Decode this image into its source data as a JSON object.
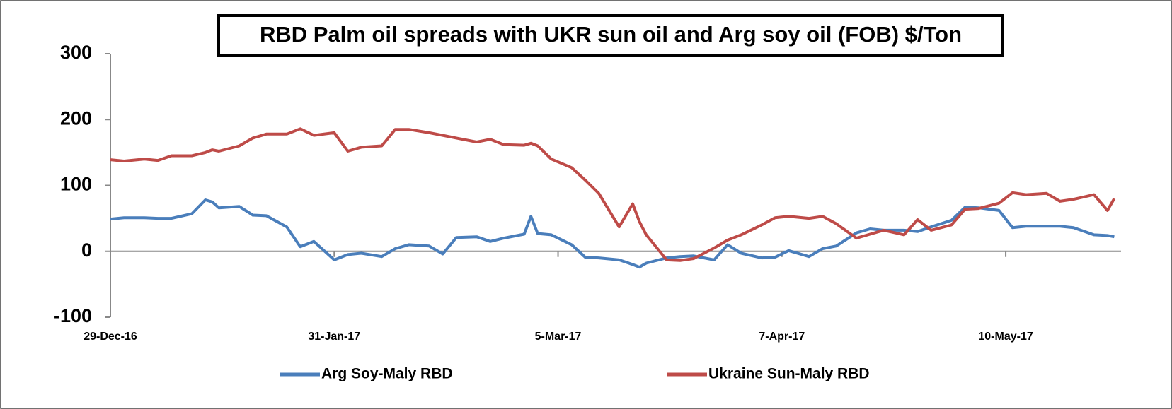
{
  "chart_data": {
    "type": "line",
    "title": "RBD Palm oil spreads with UKR sun oil and Arg soy oil (FOB) $/Ton",
    "x": [
      "2016-12-29",
      "2016-12-31",
      "2017-01-03",
      "2017-01-05",
      "2017-01-07",
      "2017-01-10",
      "2017-01-12",
      "2017-01-13",
      "2017-01-14",
      "2017-01-17",
      "2017-01-19",
      "2017-01-21",
      "2017-01-24",
      "2017-01-26",
      "2017-01-28",
      "2017-01-31",
      "2017-02-02",
      "2017-02-04",
      "2017-02-07",
      "2017-02-09",
      "2017-02-11",
      "2017-02-14",
      "2017-02-16",
      "2017-02-18",
      "2017-02-21",
      "2017-02-23",
      "2017-02-25",
      "2017-02-28",
      "2017-03-01",
      "2017-03-02",
      "2017-03-04",
      "2017-03-07",
      "2017-03-09",
      "2017-03-11",
      "2017-03-14",
      "2017-03-16",
      "2017-03-17",
      "2017-03-18",
      "2017-03-21",
      "2017-03-23",
      "2017-03-25",
      "2017-03-28",
      "2017-03-30",
      "2017-04-01",
      "2017-04-04",
      "2017-04-06",
      "2017-04-08",
      "2017-04-11",
      "2017-04-13",
      "2017-04-15",
      "2017-04-18",
      "2017-04-20",
      "2017-04-22",
      "2017-04-25",
      "2017-04-27",
      "2017-04-29",
      "2017-05-02",
      "2017-05-04",
      "2017-05-06",
      "2017-05-09",
      "2017-05-11",
      "2017-05-13",
      "2017-05-16",
      "2017-05-18",
      "2017-05-20",
      "2017-05-23",
      "2017-05-25",
      "2017-05-26"
    ],
    "series": [
      {
        "name": "Arg Soy-Maly RBD",
        "color": "#4a7ebb",
        "values": [
          49,
          51,
          51,
          50,
          50,
          57,
          78,
          75,
          66,
          68,
          55,
          54,
          37,
          7,
          15,
          -13,
          -5,
          -3,
          -8,
          4,
          10,
          8,
          -4,
          21,
          22,
          15,
          20,
          26,
          53,
          27,
          25,
          10,
          -9,
          -10,
          -13,
          -20,
          -24,
          -18,
          -10,
          -8,
          -7,
          -13,
          10,
          -3,
          -10,
          -9,
          1,
          -8,
          4,
          8,
          28,
          34,
          32,
          32,
          30,
          37,
          47,
          67,
          66,
          62,
          36,
          38,
          38,
          38,
          36,
          25,
          24,
          22
        ]
      },
      {
        "name": "Ukraine Sun-Maly RBD",
        "color": "#be4b48",
        "values": [
          139,
          137,
          140,
          138,
          145,
          145,
          150,
          154,
          152,
          160,
          172,
          178,
          178,
          186,
          176,
          180,
          152,
          158,
          160,
          185,
          185,
          180,
          176,
          172,
          166,
          170,
          162,
          161,
          164,
          160,
          140,
          127,
          108,
          88,
          37,
          72,
          45,
          25,
          -13,
          -14,
          -11,
          5,
          17,
          25,
          40,
          51,
          53,
          50,
          53,
          42,
          20,
          26,
          32,
          25,
          48,
          32,
          40,
          64,
          65,
          73,
          89,
          86,
          88,
          76,
          79,
          86,
          62,
          80
        ]
      }
    ],
    "xlim": [
      "2016-12-29",
      "2017-05-27"
    ],
    "xticks": [
      {
        "value": "2016-12-29",
        "label": "29-Dec-16"
      },
      {
        "value": "2017-01-31",
        "label": "31-Jan-17"
      },
      {
        "value": "2017-03-05",
        "label": "5-Mar-17"
      },
      {
        "value": "2017-04-07",
        "label": "7-Apr-17"
      },
      {
        "value": "2017-05-10",
        "label": "10-May-17"
      }
    ],
    "ylim": [
      -100,
      300
    ],
    "yticks": [
      -100,
      0,
      100,
      200,
      300
    ],
    "legend": "bottom"
  }
}
